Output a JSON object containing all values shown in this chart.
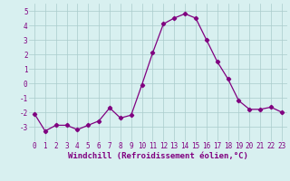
{
  "x": [
    0,
    1,
    2,
    3,
    4,
    5,
    6,
    7,
    8,
    9,
    10,
    11,
    12,
    13,
    14,
    15,
    16,
    17,
    18,
    19,
    20,
    21,
    22,
    23
  ],
  "y": [
    -2.1,
    -3.3,
    -2.9,
    -2.9,
    -3.2,
    -2.9,
    -2.6,
    -1.7,
    -2.4,
    -2.2,
    -0.1,
    2.1,
    4.1,
    4.5,
    4.8,
    4.5,
    3.0,
    1.5,
    0.3,
    -1.2,
    -1.8,
    -1.8,
    -1.65,
    -2.0
  ],
  "xlim": [
    -0.5,
    23.5
  ],
  "ylim": [
    -4.0,
    5.5
  ],
  "yticks": [
    -3,
    -2,
    -1,
    0,
    1,
    2,
    3,
    4,
    5
  ],
  "xticks": [
    0,
    1,
    2,
    3,
    4,
    5,
    6,
    7,
    8,
    9,
    10,
    11,
    12,
    13,
    14,
    15,
    16,
    17,
    18,
    19,
    20,
    21,
    22,
    23
  ],
  "xlabel": "Windchill (Refroidissement éolien,°C)",
  "line_color": "#800080",
  "marker": "D",
  "marker_size": 2.2,
  "line_width": 0.9,
  "bg_color": "#d8f0f0",
  "grid_color": "#aacccc",
  "tick_fontsize": 5.5,
  "xlabel_fontsize": 6.5,
  "xlabel_color": "#800080"
}
